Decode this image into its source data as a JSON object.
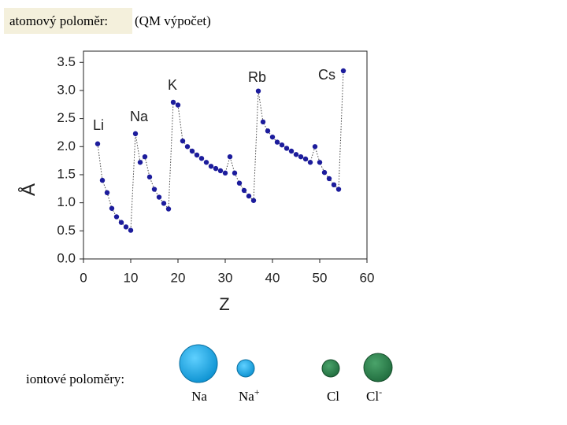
{
  "title": "atomový poloměr:",
  "subtitle": "(QM výpočet)",
  "chart_data": {
    "type": "line",
    "color": "#1c1c9c",
    "x_label": "Z",
    "y_label": "Å",
    "xlim": [
      0,
      60
    ],
    "xticks": [
      0,
      10,
      20,
      30,
      40,
      50,
      60
    ],
    "ylim": [
      0,
      3.7
    ],
    "yticks": [
      {
        "value": 0,
        "label": "0.0"
      },
      0.5,
      {
        "value": 1,
        "label": "1.0"
      },
      1.5,
      {
        "value": 2,
        "label": "2.0"
      },
      2.5,
      {
        "value": 3,
        "label": "3.0"
      },
      3.5
    ],
    "x": [
      3,
      4,
      5,
      6,
      7,
      8,
      9,
      10,
      11,
      12,
      13,
      14,
      15,
      16,
      17,
      18,
      19,
      20,
      21,
      22,
      23,
      24,
      25,
      26,
      27,
      28,
      29,
      30,
      31,
      32,
      33,
      34,
      35,
      36,
      37,
      38,
      39,
      40,
      41,
      42,
      43,
      44,
      45,
      46,
      47,
      48,
      49,
      50,
      51,
      52,
      53,
      54,
      55
    ],
    "values": [
      2.05,
      1.4,
      1.18,
      0.9,
      0.75,
      0.65,
      0.57,
      0.51,
      2.23,
      1.72,
      1.82,
      1.46,
      1.24,
      1.1,
      0.99,
      0.89,
      2.79,
      2.74,
      2.1,
      2.0,
      1.92,
      1.85,
      1.79,
      1.72,
      1.65,
      1.61,
      1.57,
      1.53,
      1.82,
      1.53,
      1.35,
      1.22,
      1.12,
      1.04,
      2.99,
      2.44,
      2.28,
      2.17,
      2.08,
      2.03,
      1.97,
      1.92,
      1.86,
      1.82,
      1.78,
      1.72,
      2.0,
      1.72,
      1.54,
      1.43,
      1.32,
      1.24,
      3.35
    ],
    "annotations": [
      "Li",
      "Na",
      "K",
      "Rb",
      "Cs"
    ]
  },
  "ions": {
    "title": "iontové poloměry:",
    "items": [
      {
        "label": "Na"
      },
      {
        "label": "Na",
        "charge": "+"
      },
      {
        "label": "Cl"
      },
      {
        "label": "Cl",
        "charge": "-"
      }
    ]
  }
}
